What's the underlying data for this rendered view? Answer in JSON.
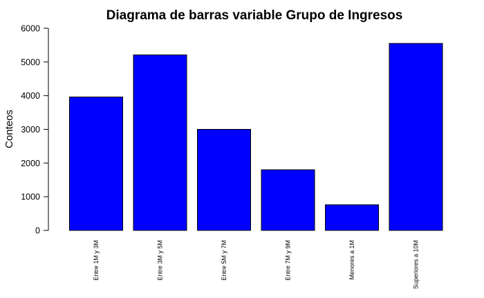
{
  "chart_data": {
    "type": "bar",
    "title": "Diagrama de barras variable Grupo de Ingresos",
    "xlabel": "",
    "ylabel": "Conteos",
    "categories": [
      "Entre 1M y 3M",
      "Entre 3M y  5M",
      "Entre 5M y 7M",
      "Entre 7M y 9M",
      "Menores a 1M",
      "Superiores a 10M"
    ],
    "values": [
      3960,
      5210,
      3000,
      1800,
      760,
      5550
    ],
    "ylim": [
      0,
      6000
    ],
    "yticks": [
      0,
      1000,
      2000,
      3000,
      4000,
      5000,
      6000
    ],
    "bar_color": "#0000ff",
    "bar_edge_color": "#000000",
    "grid": false,
    "legend": "none"
  }
}
